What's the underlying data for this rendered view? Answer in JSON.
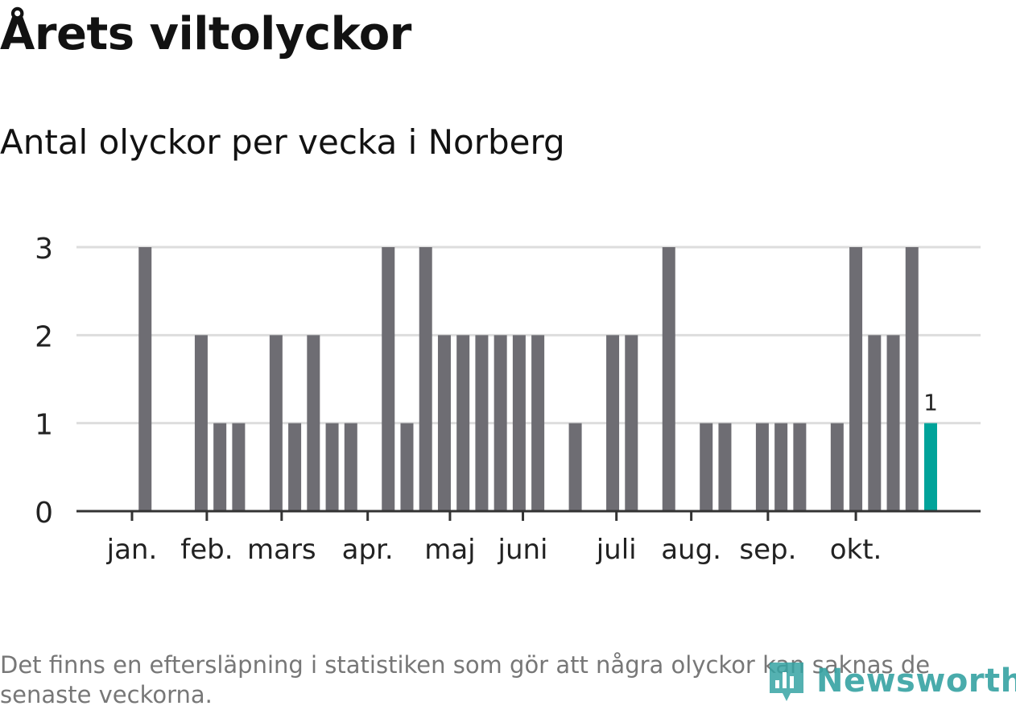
{
  "header": {
    "title": "Årets viltolyckor",
    "subtitle": "Antal olyckor per vecka i Norberg"
  },
  "footer": {
    "note": "Det finns en eftersläpning i statistiken som gör att några olyckor kan saknas de senaste veckorna.",
    "logo_text": "Newsworthy"
  },
  "colors": {
    "bar": "#6e6d73",
    "highlight": "#00a39a",
    "grid": "#dddddd",
    "axis": "#333333",
    "text": "#222222"
  },
  "chart_data": {
    "type": "bar",
    "title": "Antal olyckor per vecka i Norberg",
    "xlabel": "",
    "ylabel": "",
    "ylim": [
      0,
      3
    ],
    "yticks": [
      "0",
      "1",
      "2",
      "3"
    ],
    "week_range": [
      1,
      44
    ],
    "month_ticks": [
      {
        "label": "jan.",
        "week": 1.3
      },
      {
        "label": "feb.",
        "week": 5.3
      },
      {
        "label": "mars",
        "week": 9.3
      },
      {
        "label": "apr.",
        "week": 13.9
      },
      {
        "label": "maj",
        "week": 18.3
      },
      {
        "label": "juni",
        "week": 22.2
      },
      {
        "label": "juli",
        "week": 27.2
      },
      {
        "label": "aug.",
        "week": 31.2
      },
      {
        "label": "sep.",
        "week": 35.3
      },
      {
        "label": "okt.",
        "week": 40.0
      }
    ],
    "weeks": [
      2,
      5,
      6,
      7,
      9,
      10,
      11,
      12,
      13,
      15,
      16,
      17,
      18,
      19,
      20,
      21,
      22,
      23,
      25,
      27,
      28,
      30,
      32,
      33,
      35,
      36,
      37,
      39,
      40,
      41,
      42,
      43,
      44
    ],
    "values": [
      3,
      2,
      1,
      1,
      2,
      1,
      2,
      1,
      1,
      3,
      1,
      3,
      2,
      2,
      2,
      2,
      2,
      2,
      1,
      2,
      2,
      3,
      1,
      1,
      1,
      1,
      1,
      1,
      3,
      2,
      2,
      3,
      1
    ],
    "highlight_week": 44,
    "data_labels": [
      {
        "week": 44,
        "text": "1"
      }
    ]
  }
}
